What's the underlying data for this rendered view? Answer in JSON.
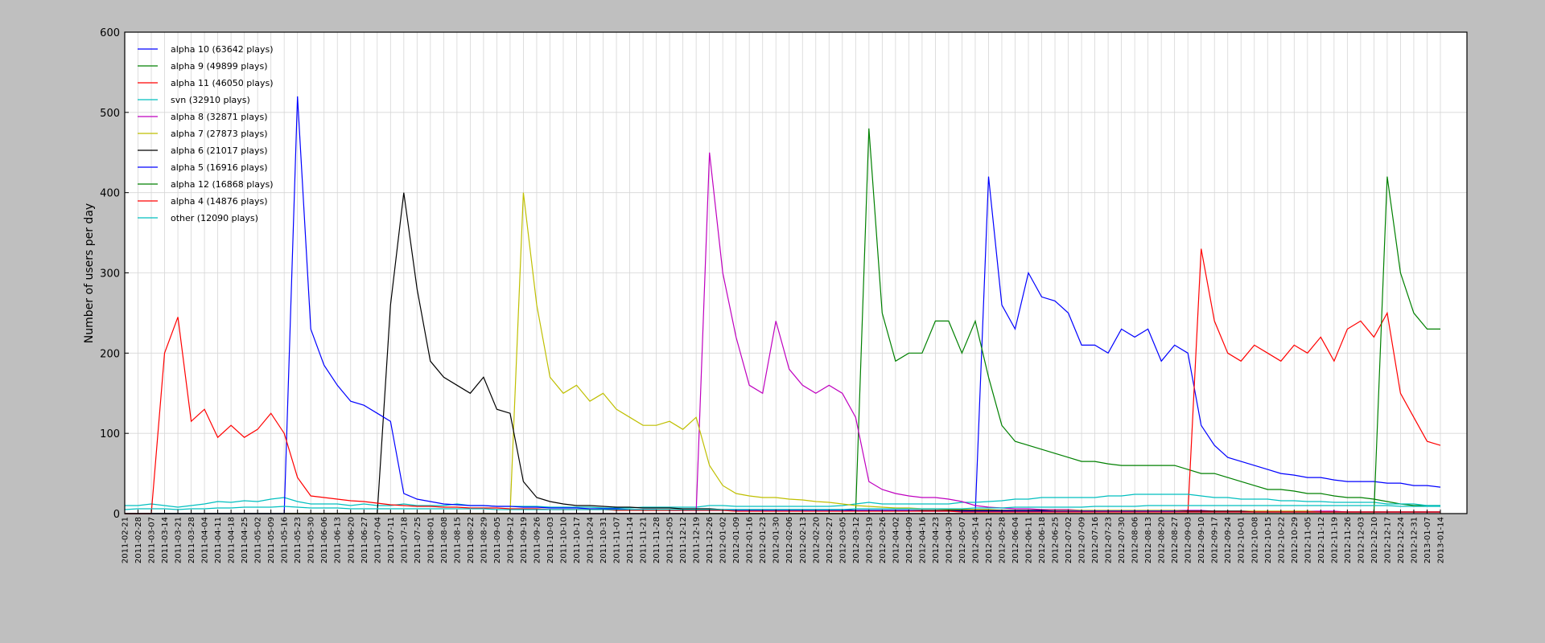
{
  "chart_data": {
    "type": "line",
    "y_label": "Number of users per day",
    "ylim": [
      0,
      600
    ],
    "yticks": [
      0,
      100,
      200,
      300,
      400,
      500,
      600
    ],
    "grid": true,
    "legend": "upper-left",
    "categories": [
      "2011-02-21",
      "2011-02-28",
      "2011-03-07",
      "2011-03-14",
      "2011-03-21",
      "2011-03-28",
      "2011-04-04",
      "2011-04-11",
      "2011-04-18",
      "2011-04-25",
      "2011-05-02",
      "2011-05-09",
      "2011-05-16",
      "2011-05-23",
      "2011-05-30",
      "2011-06-06",
      "2011-06-13",
      "2011-06-20",
      "2011-06-27",
      "2011-07-04",
      "2011-07-11",
      "2011-07-18",
      "2011-07-25",
      "2011-08-01",
      "2011-08-08",
      "2011-08-15",
      "2011-08-22",
      "2011-08-29",
      "2011-09-05",
      "2011-09-12",
      "2011-09-19",
      "2011-09-26",
      "2011-10-03",
      "2011-10-10",
      "2011-10-17",
      "2011-10-24",
      "2011-10-31",
      "2011-11-07",
      "2011-11-14",
      "2011-11-21",
      "2011-11-28",
      "2011-12-05",
      "2011-12-12",
      "2011-12-19",
      "2011-12-26",
      "2012-01-02",
      "2012-01-09",
      "2012-01-16",
      "2012-01-23",
      "2012-01-30",
      "2012-02-06",
      "2012-02-13",
      "2012-02-20",
      "2012-02-27",
      "2012-03-05",
      "2012-03-12",
      "2012-03-19",
      "2012-03-26",
      "2012-04-02",
      "2012-04-09",
      "2012-04-16",
      "2012-04-23",
      "2012-04-30",
      "2012-05-07",
      "2012-05-14",
      "2012-05-21",
      "2012-05-28",
      "2012-06-04",
      "2012-06-11",
      "2012-06-18",
      "2012-06-25",
      "2012-07-02",
      "2012-07-09",
      "2012-07-16",
      "2012-07-23",
      "2012-07-30",
      "2012-08-06",
      "2012-08-13",
      "2012-08-20",
      "2012-08-27",
      "2012-09-03",
      "2012-09-10",
      "2012-09-17",
      "2012-09-24",
      "2012-10-01",
      "2012-10-08",
      "2012-10-15",
      "2012-10-22",
      "2012-10-29",
      "2012-11-05",
      "2012-11-12",
      "2012-11-19",
      "2012-11-26",
      "2012-12-03",
      "2012-12-10",
      "2012-12-17",
      "2012-12-24",
      "2012-12-31",
      "2013-01-07",
      "2013-01-14"
    ],
    "series": [
      {
        "name": "alpha 10 (63642 plays)",
        "color": "#0000ff",
        "values": [
          0,
          0,
          0,
          0,
          0,
          0,
          0,
          0,
          0,
          0,
          0,
          0,
          0,
          0,
          0,
          0,
          0,
          0,
          0,
          0,
          0,
          0,
          0,
          0,
          0,
          0,
          0,
          0,
          0,
          0,
          0,
          0,
          0,
          0,
          0,
          0,
          0,
          0,
          0,
          0,
          0,
          0,
          0,
          0,
          0,
          0,
          0,
          0,
          0,
          0,
          0,
          0,
          0,
          0,
          0,
          0,
          0,
          0,
          0,
          0,
          0,
          0,
          0,
          0,
          0,
          420,
          260,
          230,
          300,
          270,
          265,
          250,
          210,
          210,
          200,
          230,
          220,
          230,
          190,
          210,
          200,
          110,
          85,
          70,
          65,
          60,
          55,
          50,
          48,
          45,
          45,
          42,
          40,
          40,
          40,
          38,
          38,
          35,
          35,
          33
        ]
      },
      {
        "name": "alpha 9 (49899 plays)",
        "color": "#008000",
        "values": [
          0,
          0,
          0,
          0,
          0,
          0,
          0,
          0,
          0,
          0,
          0,
          0,
          0,
          0,
          0,
          0,
          0,
          0,
          0,
          0,
          0,
          0,
          0,
          0,
          0,
          0,
          0,
          0,
          0,
          0,
          0,
          0,
          0,
          0,
          0,
          0,
          0,
          0,
          0,
          0,
          0,
          0,
          0,
          0,
          0,
          0,
          0,
          0,
          0,
          0,
          0,
          0,
          0,
          0,
          0,
          0,
          480,
          250,
          190,
          200,
          200,
          240,
          240,
          200,
          240,
          170,
          110,
          90,
          85,
          80,
          75,
          70,
          65,
          65,
          62,
          60,
          60,
          60,
          60,
          60,
          55,
          50,
          50,
          45,
          40,
          35,
          30,
          30,
          28,
          25,
          25,
          22,
          20,
          20,
          18,
          15,
          12,
          10,
          10,
          10
        ]
      },
      {
        "name": "alpha 11 (46050 plays)",
        "color": "#ff0000",
        "values": [
          0,
          0,
          0,
          0,
          0,
          0,
          0,
          0,
          0,
          0,
          0,
          0,
          0,
          0,
          0,
          0,
          0,
          0,
          0,
          0,
          0,
          0,
          0,
          0,
          0,
          0,
          0,
          0,
          0,
          0,
          0,
          0,
          0,
          0,
          0,
          0,
          0,
          0,
          0,
          0,
          0,
          0,
          0,
          0,
          0,
          0,
          0,
          0,
          0,
          0,
          0,
          0,
          0,
          0,
          0,
          0,
          0,
          0,
          0,
          0,
          0,
          0,
          0,
          0,
          0,
          0,
          0,
          0,
          0,
          0,
          0,
          0,
          0,
          0,
          0,
          0,
          0,
          0,
          0,
          0,
          0,
          330,
          240,
          200,
          190,
          210,
          200,
          190,
          210,
          200,
          220,
          190,
          230,
          240,
          220,
          250,
          150,
          120,
          90,
          85
        ]
      },
      {
        "name": "svn (32910 plays)",
        "color": "#00bfbf",
        "values": [
          10,
          10,
          12,
          10,
          8,
          10,
          12,
          15,
          14,
          16,
          15,
          18,
          20,
          15,
          12,
          12,
          12,
          10,
          12,
          10,
          10,
          12,
          10,
          10,
          10,
          12,
          10,
          10,
          9,
          9,
          9,
          9,
          8,
          8,
          8,
          8,
          7,
          7,
          7,
          8,
          8,
          8,
          8,
          8,
          10,
          10,
          9,
          9,
          9,
          9,
          9,
          9,
          9,
          9,
          10,
          12,
          14,
          12,
          12,
          12,
          12,
          12,
          12,
          14,
          14,
          15,
          16,
          18,
          18,
          20,
          20,
          20,
          20,
          20,
          22,
          22,
          24,
          24,
          24,
          24,
          24,
          22,
          20,
          20,
          18,
          18,
          18,
          16,
          16,
          15,
          15,
          14,
          14,
          14,
          14,
          12,
          12,
          12,
          10,
          10
        ]
      },
      {
        "name": "alpha 8 (32871 plays)",
        "color": "#bf00bf",
        "values": [
          0,
          0,
          0,
          0,
          0,
          0,
          0,
          0,
          0,
          0,
          0,
          0,
          0,
          0,
          0,
          0,
          0,
          0,
          0,
          0,
          0,
          0,
          0,
          0,
          0,
          0,
          0,
          0,
          0,
          0,
          0,
          0,
          0,
          0,
          0,
          0,
          0,
          0,
          0,
          0,
          0,
          0,
          0,
          0,
          450,
          300,
          220,
          160,
          150,
          240,
          180,
          160,
          150,
          160,
          150,
          120,
          40,
          30,
          25,
          22,
          20,
          20,
          18,
          15,
          10,
          8,
          7,
          6,
          6,
          5,
          5,
          5,
          4,
          4,
          4,
          4,
          4,
          4,
          4,
          4,
          4,
          4,
          3,
          3,
          3,
          3,
          3,
          3,
          3,
          3,
          3,
          3,
          2,
          2,
          2,
          2,
          2,
          2,
          2,
          2
        ]
      },
      {
        "name": "alpha 7 (27873 plays)",
        "color": "#bfbf00",
        "values": [
          0,
          0,
          0,
          0,
          0,
          0,
          0,
          0,
          0,
          0,
          0,
          0,
          0,
          0,
          0,
          0,
          0,
          0,
          0,
          0,
          0,
          0,
          0,
          0,
          0,
          0,
          0,
          0,
          0,
          0,
          400,
          260,
          170,
          150,
          160,
          140,
          150,
          130,
          120,
          110,
          110,
          115,
          105,
          120,
          60,
          35,
          25,
          22,
          20,
          20,
          18,
          17,
          15,
          14,
          12,
          10,
          9,
          8,
          7,
          7,
          6,
          6,
          5,
          5,
          5,
          5,
          4,
          4,
          4,
          4,
          4,
          4,
          4,
          4,
          4,
          4,
          4,
          4,
          4,
          4,
          3,
          3,
          3,
          3,
          3,
          3,
          3,
          3,
          3,
          3,
          2,
          2,
          2,
          2,
          2,
          2,
          2,
          2,
          2,
          2
        ]
      },
      {
        "name": "alpha 6 (21017 plays)",
        "color": "#000000",
        "values": [
          0,
          0,
          0,
          0,
          0,
          0,
          0,
          0,
          0,
          0,
          0,
          0,
          0,
          0,
          0,
          0,
          0,
          0,
          0,
          0,
          260,
          400,
          280,
          190,
          170,
          160,
          150,
          170,
          130,
          125,
          40,
          20,
          15,
          12,
          10,
          10,
          9,
          8,
          8,
          7,
          7,
          7,
          6,
          6,
          6,
          5,
          5,
          5,
          5,
          5,
          5,
          5,
          5,
          5,
          5,
          4,
          4,
          4,
          4,
          4,
          4,
          4,
          4,
          4,
          4,
          4,
          4,
          4,
          4,
          4,
          3,
          3,
          3,
          3,
          3,
          3,
          3,
          3,
          3,
          3,
          3,
          3,
          3,
          3,
          3,
          2,
          2,
          2,
          2,
          2,
          2,
          2,
          2,
          2,
          2,
          2,
          2,
          2,
          2,
          2
        ]
      },
      {
        "name": "alpha 5 (16916 plays)",
        "color": "#0000ff",
        "values": [
          0,
          0,
          0,
          0,
          0,
          0,
          0,
          0,
          0,
          0,
          0,
          0,
          0,
          520,
          230,
          185,
          160,
          140,
          135,
          125,
          115,
          25,
          18,
          15,
          12,
          11,
          10,
          10,
          9,
          9,
          8,
          8,
          7,
          7,
          7,
          6,
          6,
          6,
          5,
          5,
          5,
          4,
          4,
          4,
          4,
          4,
          4,
          4,
          4,
          4,
          4,
          4,
          4,
          4,
          4,
          4,
          4,
          4,
          4,
          4,
          3,
          3,
          3,
          3,
          3,
          3,
          3,
          3,
          3,
          3,
          3,
          3,
          3,
          3,
          3,
          3,
          3,
          3,
          3,
          3,
          2,
          2,
          2,
          2,
          2,
          2,
          2,
          2,
          2,
          2,
          2,
          2,
          2,
          2,
          2,
          2,
          2,
          2,
          2,
          2
        ]
      },
      {
        "name": "alpha 12 (16868 plays)",
        "color": "#008000",
        "values": [
          0,
          0,
          0,
          0,
          0,
          0,
          0,
          0,
          0,
          0,
          0,
          0,
          0,
          0,
          0,
          0,
          0,
          0,
          0,
          0,
          0,
          0,
          0,
          0,
          0,
          0,
          0,
          0,
          0,
          0,
          0,
          0,
          0,
          0,
          0,
          0,
          0,
          0,
          0,
          0,
          0,
          0,
          0,
          0,
          0,
          0,
          0,
          0,
          0,
          0,
          0,
          0,
          0,
          0,
          0,
          0,
          0,
          0,
          0,
          0,
          0,
          0,
          0,
          0,
          0,
          0,
          0,
          0,
          0,
          0,
          0,
          0,
          0,
          0,
          0,
          0,
          0,
          0,
          0,
          0,
          0,
          0,
          0,
          0,
          0,
          0,
          0,
          0,
          0,
          0,
          0,
          0,
          0,
          0,
          0,
          420,
          300,
          250,
          230,
          230
        ]
      },
      {
        "name": "alpha 4 (14876 plays)",
        "color": "#ff0000",
        "values": [
          0,
          0,
          0,
          200,
          245,
          115,
          130,
          95,
          110,
          95,
          105,
          125,
          100,
          45,
          22,
          20,
          18,
          16,
          15,
          13,
          11,
          10,
          9,
          9,
          8,
          8,
          7,
          7,
          7,
          6,
          6,
          6,
          5,
          5,
          5,
          5,
          5,
          4,
          4,
          4,
          4,
          4,
          4,
          4,
          4,
          4,
          3,
          3,
          3,
          3,
          3,
          3,
          3,
          3,
          3,
          3,
          3,
          3,
          3,
          3,
          3,
          3,
          3,
          2,
          2,
          2,
          2,
          2,
          2,
          2,
          2,
          2,
          2,
          2,
          2,
          2,
          2,
          2,
          2,
          2,
          2,
          2,
          2,
          2,
          2,
          2,
          2,
          2,
          2,
          2,
          2,
          2,
          2,
          2,
          2,
          2,
          2,
          2,
          2,
          2
        ]
      },
      {
        "name": "other (12090 plays)",
        "color": "#00bfbf",
        "values": [
          5,
          6,
          6,
          6,
          5,
          6,
          6,
          7,
          7,
          8,
          8,
          8,
          9,
          8,
          7,
          7,
          7,
          6,
          6,
          6,
          6,
          6,
          6,
          6,
          6,
          6,
          6,
          6,
          5,
          5,
          5,
          5,
          5,
          5,
          5,
          5,
          5,
          5,
          5,
          5,
          5,
          5,
          5,
          5,
          5,
          5,
          5,
          5,
          5,
          5,
          5,
          5,
          5,
          5,
          5,
          6,
          6,
          6,
          6,
          6,
          6,
          6,
          6,
          6,
          7,
          7,
          7,
          8,
          8,
          8,
          8,
          8,
          8,
          9,
          9,
          9,
          9,
          10,
          10,
          10,
          10,
          10,
          10,
          10,
          10,
          10,
          10,
          10,
          10,
          10,
          10,
          10,
          10,
          10,
          10,
          10,
          9,
          9,
          9,
          9
        ]
      }
    ]
  }
}
